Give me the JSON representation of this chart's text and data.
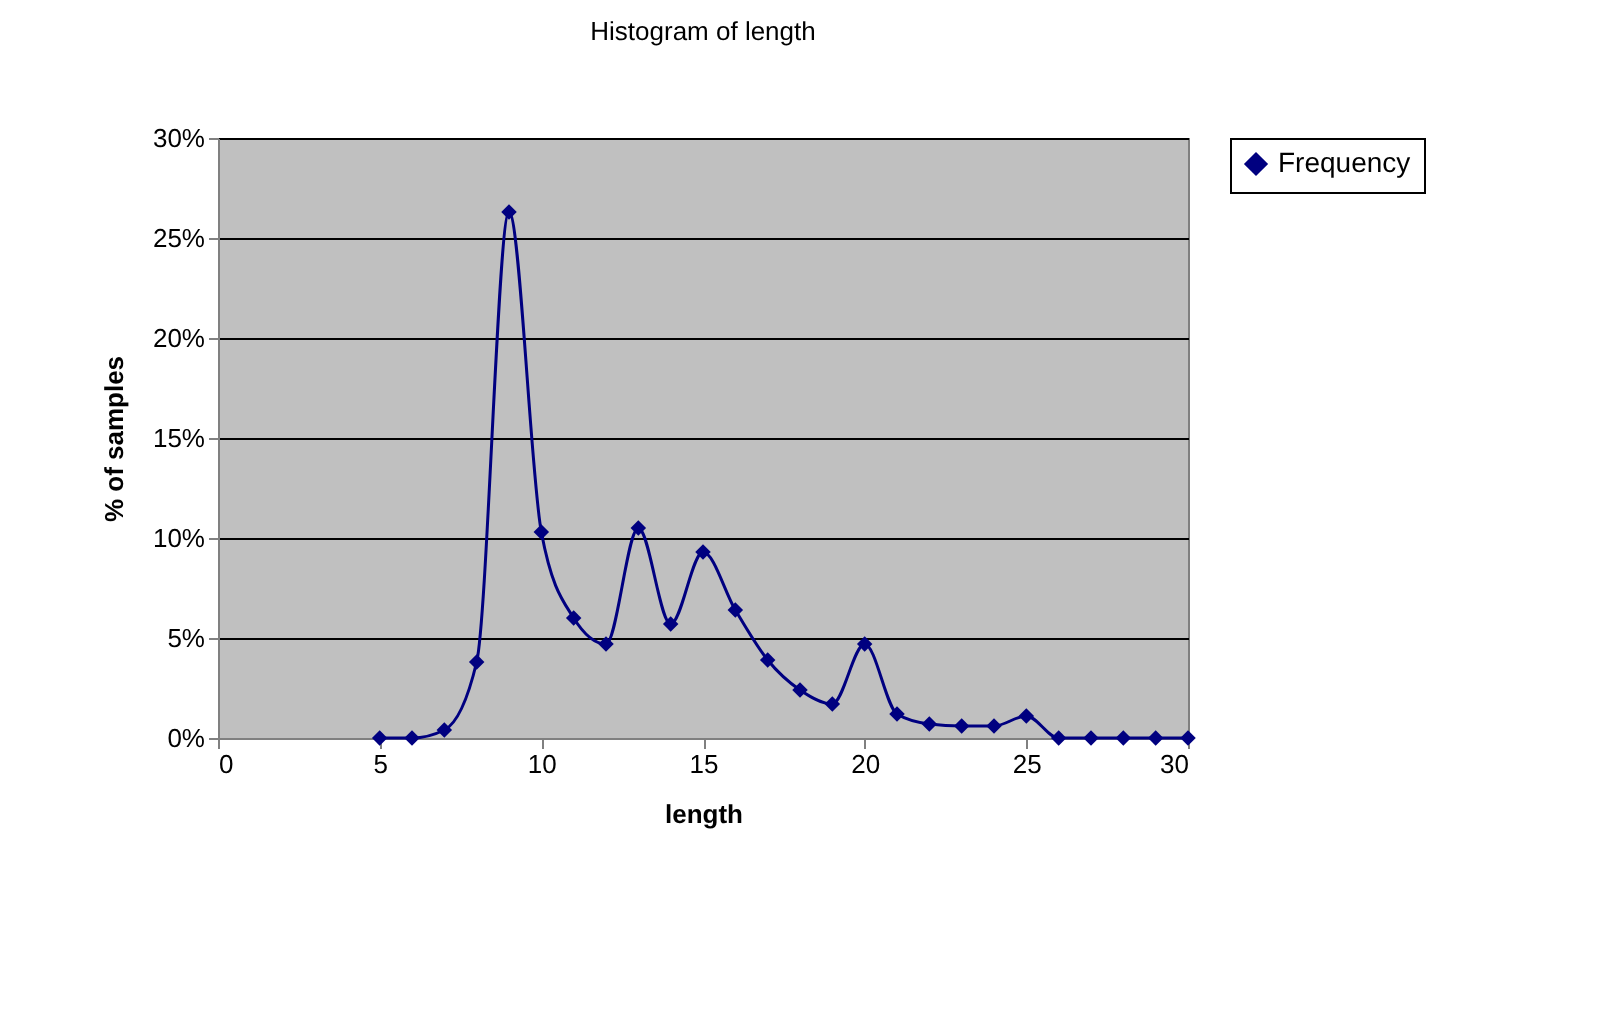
{
  "chart_data": {
    "type": "line",
    "title": "Histogram of length",
    "xlabel": "length",
    "ylabel": "% of samples",
    "x": [
      5,
      6,
      7,
      8,
      9,
      10,
      11,
      12,
      13,
      14,
      15,
      16,
      17,
      18,
      19,
      20,
      21,
      22,
      23,
      24,
      25,
      26,
      27,
      28,
      29,
      30
    ],
    "series": [
      {
        "name": "Frequency",
        "color": "#000080",
        "values": [
          0,
          0,
          0.4,
          3.8,
          26.3,
          10.3,
          6.0,
          4.7,
          10.5,
          5.7,
          9.3,
          6.4,
          3.9,
          2.4,
          1.7,
          4.7,
          1.2,
          0.7,
          0.6,
          0.6,
          1.1,
          0,
          0,
          0,
          0,
          0
        ]
      }
    ],
    "xlim": [
      0,
      30
    ],
    "xticks": [
      0,
      5,
      10,
      15,
      20,
      25,
      30
    ],
    "ylim": [
      0,
      30
    ],
    "yticks": [
      {
        "value": 0,
        "label": "0%"
      },
      {
        "value": 5,
        "label": "5%"
      },
      {
        "value": 10,
        "label": "10%"
      },
      {
        "value": 15,
        "label": "15%"
      },
      {
        "value": 20,
        "label": "20%"
      },
      {
        "value": 25,
        "label": "25%"
      },
      {
        "value": 30,
        "label": "30%"
      }
    ],
    "grid": "y",
    "legend": "right",
    "marker": "diamond",
    "line_style": "solid"
  }
}
